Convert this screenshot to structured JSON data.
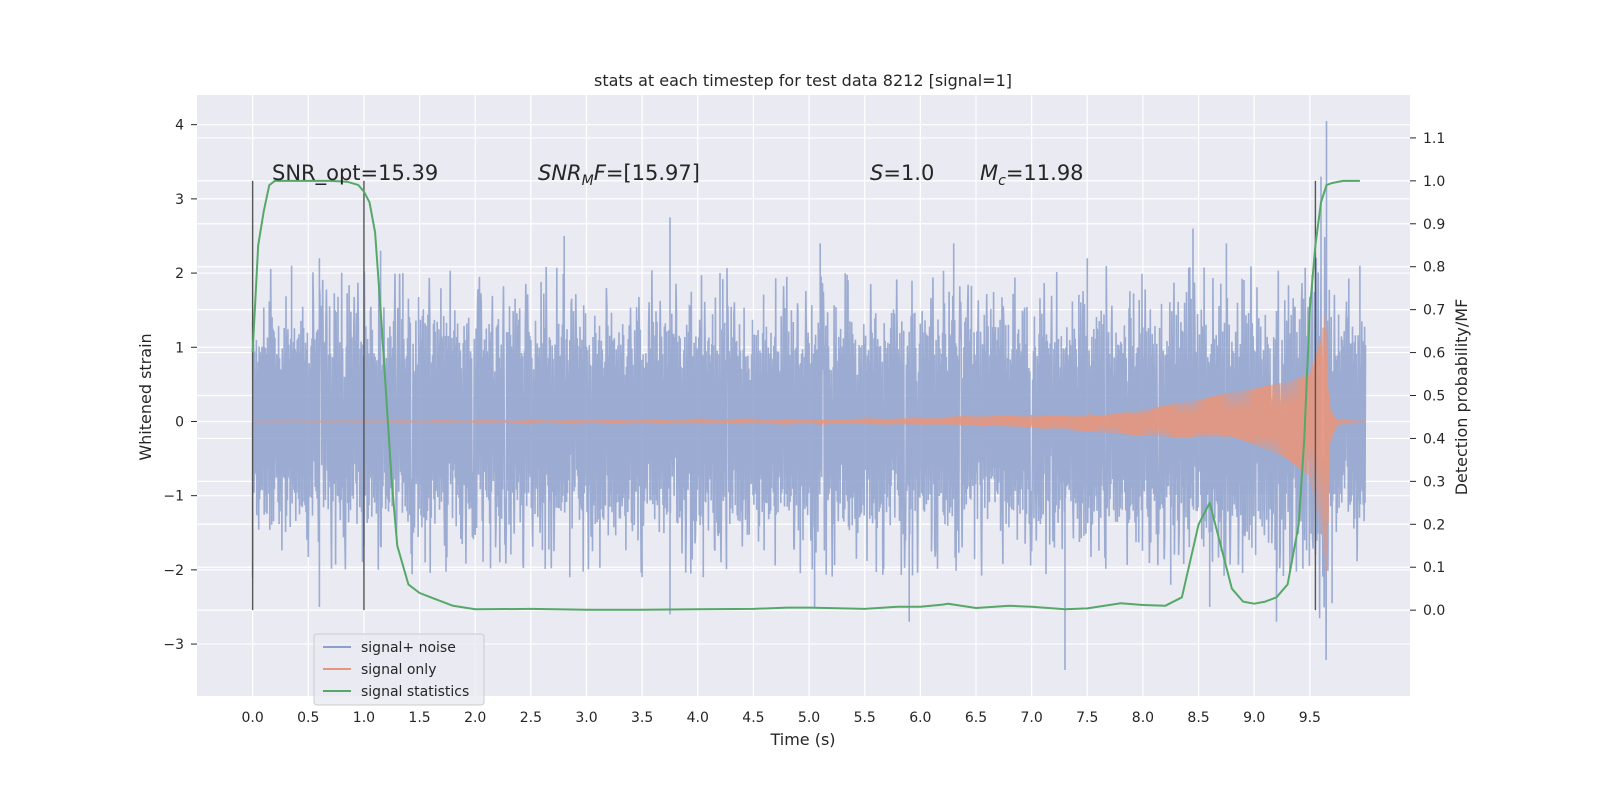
{
  "chart_data": {
    "type": "line",
    "title": "stats at each timestep for test data 8212 [signal=1]",
    "xlabel": "Time (s)",
    "ylabel": "Whitened strain",
    "y2label": "Detection probability/MF",
    "xlim": [
      -0.5,
      10.4
    ],
    "ylim": [
      -3.7,
      4.4
    ],
    "y2lim": [
      -0.2,
      1.2
    ],
    "xticks": [
      "0.0",
      "0.5",
      "1.0",
      "1.5",
      "2.0",
      "2.5",
      "3.0",
      "3.5",
      "4.0",
      "4.5",
      "5.0",
      "5.5",
      "6.0",
      "6.5",
      "7.0",
      "7.5",
      "8.0",
      "8.5",
      "9.0",
      "9.5"
    ],
    "yticks": [
      "4",
      "3",
      "2",
      "1",
      "0",
      "−1",
      "−2",
      "−3"
    ],
    "y2ticks": [
      "1.1",
      "1.0",
      "0.9",
      "0.8",
      "0.7",
      "0.6",
      "0.5",
      "0.4",
      "0.3",
      "0.2",
      "0.1",
      "0.0"
    ],
    "grid": true,
    "legend_position": "lower-left",
    "annotations": {
      "snr_opt": "SNR_opt=15.39",
      "snr_mf_italic": "SNR",
      "snr_mf_sub": "M",
      "snr_mf_f": "F",
      "snr_mf_value": "=[15.97]",
      "s_italic": "S",
      "s_value": "=1.0",
      "mc_italic": "M",
      "mc_sub": "c",
      "mc_value": "=11.98"
    },
    "vlines_x": [
      0.0,
      1.0,
      9.55
    ],
    "series": [
      {
        "name": "signal+ noise",
        "color": "#8da0cb",
        "axis": "left",
        "x_range": [
          0.0,
          10.0
        ],
        "baseline_amplitude": 1.3,
        "peaks": [
          [
            0.35,
            2.1
          ],
          [
            0.6,
            2.2
          ],
          [
            1.15,
            2.3
          ],
          [
            1.35,
            2.0
          ],
          [
            2.8,
            2.5
          ],
          [
            3.75,
            2.75
          ],
          [
            4.2,
            2.0
          ],
          [
            5.1,
            2.4
          ],
          [
            6.3,
            2.4
          ],
          [
            7.5,
            2.2
          ],
          [
            8.45,
            2.6
          ],
          [
            8.75,
            2.4
          ],
          [
            9.6,
            3.3
          ],
          [
            9.65,
            4.05
          ],
          [
            9.95,
            2.1
          ]
        ],
        "troughs": [
          [
            0.0,
            -2.1
          ],
          [
            0.6,
            -2.5
          ],
          [
            1.55,
            -1.9
          ],
          [
            2.85,
            -2.1
          ],
          [
            3.5,
            -2.1
          ],
          [
            3.75,
            -2.6
          ],
          [
            4.05,
            -2.1
          ],
          [
            5.05,
            -2.5
          ],
          [
            5.9,
            -2.7
          ],
          [
            7.3,
            -3.35
          ],
          [
            8.25,
            -2.2
          ],
          [
            8.6,
            -2.5
          ],
          [
            9.2,
            -2.7
          ],
          [
            9.7,
            -2.45
          ]
        ]
      },
      {
        "name": "signal only",
        "color": "#e5967c",
        "axis": "left",
        "x_range": [
          0.0,
          10.0
        ],
        "envelope": [
          [
            0.0,
            0.0
          ],
          [
            5.0,
            0.02
          ],
          [
            6.0,
            0.05
          ],
          [
            7.0,
            0.1
          ],
          [
            7.5,
            0.13
          ],
          [
            8.0,
            0.2
          ],
          [
            8.5,
            0.3
          ],
          [
            9.0,
            0.45
          ],
          [
            9.3,
            0.6
          ],
          [
            9.5,
            0.8
          ],
          [
            9.6,
            1.5
          ],
          [
            9.65,
            2.2
          ],
          [
            9.68,
            0.3
          ],
          [
            9.75,
            0.02
          ],
          [
            10.0,
            0.0
          ]
        ]
      },
      {
        "name": "signal statistics",
        "color": "#55a868",
        "axis": "right",
        "x": [
          0.0,
          0.05,
          0.1,
          0.15,
          0.2,
          0.3,
          0.5,
          0.7,
          0.85,
          0.95,
          1.0,
          1.05,
          1.1,
          1.15,
          1.2,
          1.25,
          1.3,
          1.4,
          1.5,
          1.6,
          1.8,
          2.0,
          2.5,
          3.0,
          3.5,
          4.0,
          4.5,
          4.8,
          5.0,
          5.3,
          5.5,
          5.8,
          6.0,
          6.2,
          6.25,
          6.5,
          6.8,
          7.0,
          7.3,
          7.5,
          7.8,
          8.0,
          8.2,
          8.35,
          8.5,
          8.6,
          8.7,
          8.8,
          8.9,
          9.0,
          9.1,
          9.2,
          9.3,
          9.4,
          9.45,
          9.5,
          9.55,
          9.6,
          9.65,
          9.7,
          9.8,
          9.95
        ],
        "y": [
          0.6,
          0.85,
          0.93,
          0.99,
          1.0,
          1.0,
          1.0,
          1.0,
          0.998,
          0.99,
          0.975,
          0.95,
          0.88,
          0.7,
          0.5,
          0.3,
          0.15,
          0.06,
          0.04,
          0.03,
          0.01,
          0.002,
          0.003,
          0.001,
          0.001,
          0.002,
          0.003,
          0.006,
          0.006,
          0.004,
          0.003,
          0.008,
          0.008,
          0.013,
          0.015,
          0.005,
          0.01,
          0.008,
          0.002,
          0.004,
          0.016,
          0.012,
          0.01,
          0.03,
          0.2,
          0.25,
          0.15,
          0.05,
          0.02,
          0.015,
          0.02,
          0.03,
          0.06,
          0.2,
          0.4,
          0.7,
          0.85,
          0.95,
          0.99,
          0.995,
          1.0,
          1.0
        ]
      }
    ]
  }
}
